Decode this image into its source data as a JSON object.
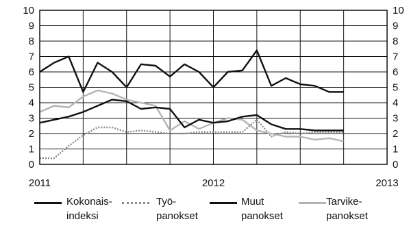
{
  "chart_data": {
    "type": "line",
    "title": "",
    "xlabel": "",
    "ylabel": "",
    "ylim": [
      0,
      10
    ],
    "yticks": [
      "0",
      "1",
      "2",
      "3",
      "4",
      "5",
      "6",
      "7",
      "8",
      "9",
      "10"
    ],
    "y2ticks": [
      "0",
      "1",
      "2",
      "3",
      "4",
      "5",
      "6",
      "7",
      "8",
      "9",
      "10"
    ],
    "xlim": [
      0,
      24
    ],
    "xticks": [
      {
        "x": 0,
        "label": "2011"
      },
      {
        "x": 12,
        "label": "2012"
      },
      {
        "x": 24,
        "label": "2013"
      }
    ],
    "grid": true,
    "legend_position": "bottom",
    "series": [
      {
        "name": "Kokonais- indeksi",
        "color": "#111111",
        "dash": "",
        "x": [
          0,
          1,
          2,
          3,
          4,
          5,
          6,
          7,
          8,
          9,
          10,
          11,
          12,
          13,
          14,
          15,
          16,
          17,
          18,
          19,
          20,
          21
        ],
        "values": [
          2.7,
          2.9,
          3.1,
          3.4,
          3.8,
          4.2,
          4.1,
          3.6,
          3.7,
          3.6,
          2.4,
          2.9,
          2.7,
          2.8,
          3.1,
          3.2,
          2.6,
          2.3,
          2.3,
          2.2,
          2.2,
          2.2
        ]
      },
      {
        "name": "Työ- panokset",
        "color": "#8a8a8a",
        "dash": "2 2",
        "x": [
          0,
          1,
          2,
          3,
          4,
          5,
          6,
          7,
          8,
          9,
          10,
          11,
          12,
          13,
          14,
          15,
          16,
          17,
          18,
          19,
          20,
          21
        ],
        "values": [
          0.4,
          0.4,
          1.2,
          1.9,
          2.4,
          2.4,
          2.1,
          2.2,
          2.1,
          2.0,
          2.0,
          2.1,
          2.1,
          2.1,
          2.1,
          2.9,
          1.8,
          2.1,
          2.0,
          2.1,
          2.1,
          2.1
        ]
      },
      {
        "name": "Muut panokset",
        "color": "#111111",
        "dash": "",
        "x": [
          0,
          1,
          2,
          3,
          4,
          5,
          6,
          7,
          8,
          9,
          10,
          11,
          12,
          13,
          14,
          15,
          16,
          17,
          18,
          19,
          20,
          21
        ],
        "values": [
          6.0,
          6.6,
          7.0,
          4.7,
          6.6,
          6.0,
          5.0,
          6.5,
          6.4,
          5.7,
          6.5,
          6.0,
          5.0,
          6.0,
          6.1,
          7.4,
          5.1,
          5.6,
          5.2,
          5.1,
          4.7,
          4.7
        ]
      },
      {
        "name": "Tarvike- panokset",
        "color": "#b4b4b4",
        "dash": "",
        "x": [
          0,
          1,
          2,
          3,
          4,
          5,
          6,
          7,
          8,
          9,
          10,
          11,
          12,
          13,
          14,
          15,
          16,
          17,
          18,
          19,
          20,
          21
        ],
        "values": [
          3.4,
          3.8,
          3.7,
          4.4,
          4.8,
          4.6,
          4.2,
          4.0,
          3.8,
          2.2,
          2.8,
          2.3,
          2.7,
          3.0,
          2.9,
          2.2,
          2.0,
          1.8,
          1.8,
          1.6,
          1.7,
          1.5
        ]
      }
    ]
  }
}
